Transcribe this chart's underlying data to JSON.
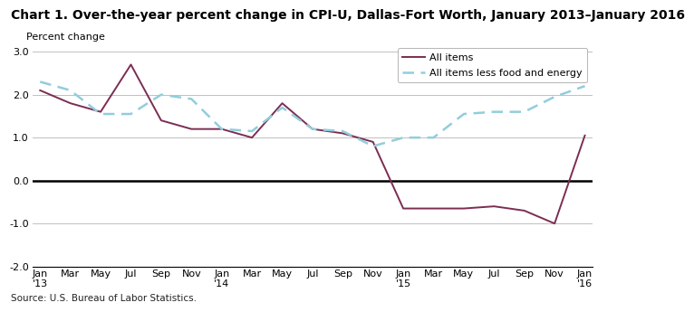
{
  "title": "Chart 1. Over-the-year percent change in CPI-U, Dallas-Fort Worth, January 2013–January 2016",
  "ylabel": "Percent change",
  "source": "Source: U.S. Bureau of Labor Statistics.",
  "ylim": [
    -2.0,
    3.2
  ],
  "yticks": [
    -2.0,
    -1.0,
    0.0,
    1.0,
    2.0,
    3.0
  ],
  "all_items_x": [
    0,
    2,
    4,
    6,
    8,
    10,
    12,
    14,
    16,
    18,
    20,
    22,
    24,
    26,
    28,
    30,
    32,
    34,
    36
  ],
  "all_items_vals": [
    2.1,
    1.8,
    1.6,
    2.7,
    1.4,
    1.2,
    1.2,
    1.0,
    1.8,
    1.2,
    1.1,
    0.9,
    -0.65,
    -0.65,
    -0.65,
    -0.6,
    -0.7,
    -1.0,
    1.05
  ],
  "all_less_x": [
    0,
    2,
    4,
    6,
    8,
    10,
    12,
    14,
    16,
    18,
    20,
    22,
    24,
    26,
    28,
    30,
    32,
    34,
    36
  ],
  "all_less_vals": [
    2.3,
    2.1,
    1.55,
    1.55,
    2.0,
    1.9,
    1.2,
    1.15,
    1.7,
    1.2,
    1.15,
    0.8,
    1.0,
    1.0,
    1.55,
    1.6,
    1.6,
    1.95,
    2.2
  ],
  "all_items_color": "#7B2D52",
  "all_items_less_color": "#92CDDC",
  "background_color": "#ffffff",
  "grid_color": "#c0c0c0",
  "zero_line_color": "#000000",
  "title_fontsize": 10,
  "label_fontsize": 8,
  "tick_fontsize": 8
}
